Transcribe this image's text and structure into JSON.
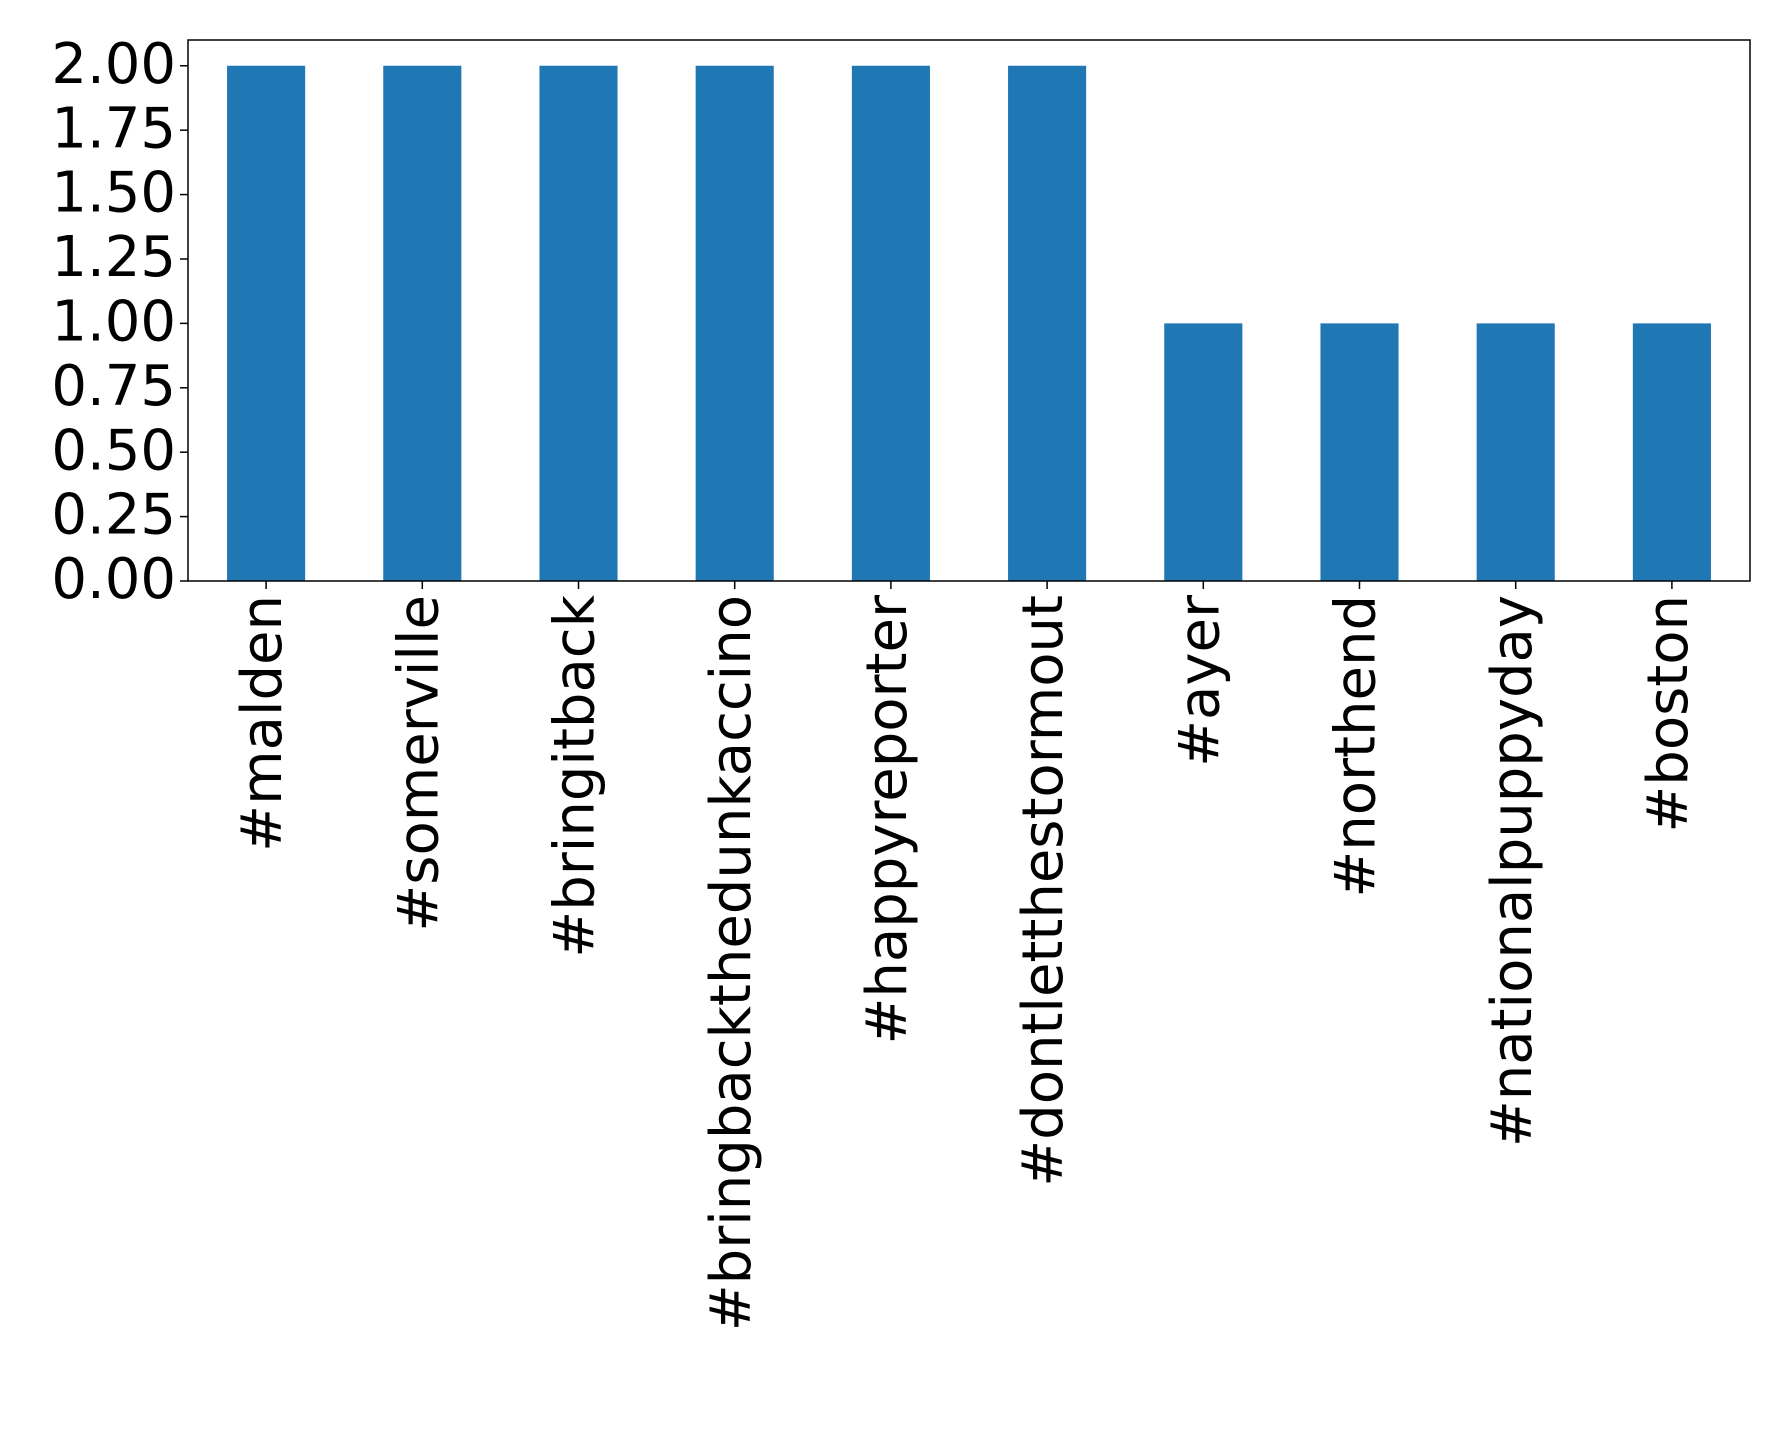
{
  "chart_data": {
    "type": "bar",
    "categories": [
      "#malden",
      "#somerville",
      "#bringitback",
      "#bringbackthedunkaccino",
      "#happyreporter",
      "#dontletthestormout",
      "#ayer",
      "#northend",
      "#nationalpuppyday",
      "#boston"
    ],
    "values": [
      2,
      2,
      2,
      2,
      2,
      2,
      1,
      1,
      1,
      1
    ],
    "color": "#1f77b4",
    "ylim": [
      0,
      2.1
    ],
    "yticks": [
      {
        "value": 0,
        "label": "0.00"
      },
      {
        "value": 0.25,
        "label": "0.25"
      },
      {
        "value": 0.5,
        "label": "0.50"
      },
      {
        "value": 0.75,
        "label": "0.75"
      },
      {
        "value": 1,
        "label": "1.00"
      },
      {
        "value": 1.25,
        "label": "1.25"
      },
      {
        "value": 1.5,
        "label": "1.50"
      },
      {
        "value": 1.75,
        "label": "1.75"
      },
      {
        "value": 2,
        "label": "2.00"
      }
    ],
    "grid": false
  }
}
